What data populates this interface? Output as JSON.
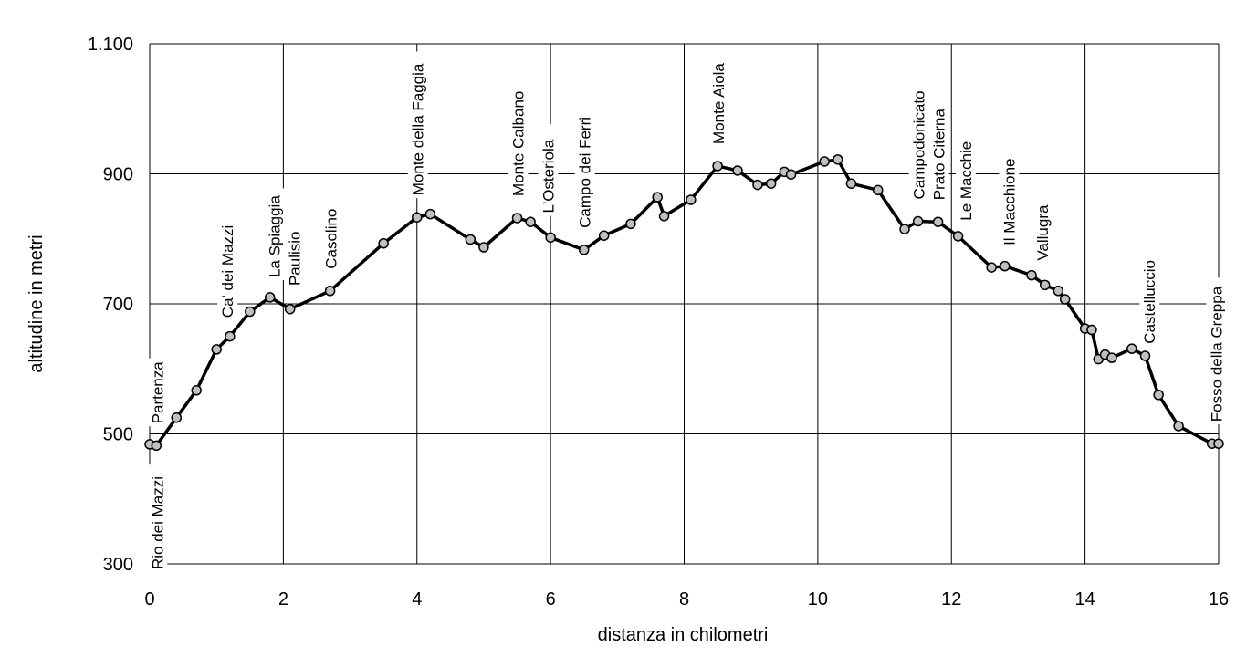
{
  "chart_data": {
    "type": "line",
    "title": "",
    "xlabel": "distanza in chilometri",
    "ylabel": "altitudine  in metri",
    "xlim": [
      0,
      16
    ],
    "ylim": [
      300,
      1100
    ],
    "x_ticks": [
      0,
      2,
      4,
      6,
      8,
      10,
      12,
      14,
      16
    ],
    "x_tick_labels": [
      "0",
      "2",
      "4",
      "6",
      "8",
      "10",
      "12",
      "14",
      "16"
    ],
    "y_ticks": [
      300,
      500,
      700,
      900,
      1100
    ],
    "y_tick_labels": [
      "300",
      "500",
      "700",
      "900",
      "1.100"
    ],
    "grid": true,
    "legend": "none",
    "series": [
      {
        "x": [
          0,
          0.1,
          0.4,
          0.7,
          1.0,
          1.2,
          1.5,
          1.8,
          2.1,
          2.7,
          3.5,
          4.0,
          4.2,
          4.8,
          5.0,
          5.5,
          5.7,
          6.0,
          6.5,
          6.8,
          7.2,
          7.6,
          7.7,
          8.1,
          8.5,
          8.8,
          9.1,
          9.3,
          9.5,
          9.6,
          10.1,
          10.3,
          10.5,
          10.9,
          11.3,
          11.5,
          11.8,
          12.1,
          12.6,
          12.8,
          13.2,
          13.4,
          13.6,
          13.7,
          14.0,
          14.1,
          14.2,
          14.3,
          14.4,
          14.7,
          14.9,
          15.1,
          15.4,
          15.9,
          16.0
        ],
        "y": [
          484,
          482,
          525,
          567,
          630,
          650,
          688,
          710,
          692,
          720,
          793,
          833,
          838,
          799,
          787,
          832,
          826,
          802,
          783,
          805,
          823,
          864,
          835,
          860,
          912,
          905,
          883,
          885,
          903,
          899,
          919,
          922,
          885,
          875,
          815,
          827,
          826,
          804,
          756,
          758,
          744,
          729,
          720,
          707,
          662,
          660,
          615,
          622,
          617,
          631,
          620,
          560,
          512,
          485,
          485
        ]
      }
    ],
    "annotations": [
      {
        "text": "Rio dei Mazzi",
        "x": 0.1
      },
      {
        "text": "Partenza",
        "x": 0.1
      },
      {
        "text": "Ca' dei Mazzi",
        "x": 1.15
      },
      {
        "text": "La Spiaggia",
        "x": 1.85
      },
      {
        "text": "Paulisio",
        "x": 2.15
      },
      {
        "text": "Casolino",
        "x": 2.7
      },
      {
        "text": "Monte della Faggia",
        "x": 4.0
      },
      {
        "text": "Monte Calbano",
        "x": 5.5
      },
      {
        "text": "L'Osteriola",
        "x": 5.95
      },
      {
        "text": "Campo dei Ferri",
        "x": 6.5
      },
      {
        "text": "Monte Aiola",
        "x": 8.5
      },
      {
        "text": "Campodonicato",
        "x": 11.5
      },
      {
        "text": "Prato Citerna",
        "x": 11.8
      },
      {
        "text": "Le Macchie",
        "x": 12.2
      },
      {
        "text": "Il Macchione",
        "x": 12.85
      },
      {
        "text": "Vallugra",
        "x": 13.35
      },
      {
        "text": "Castelluccio",
        "x": 14.95
      },
      {
        "text": "Fosso della Greppa",
        "x": 15.95
      }
    ]
  }
}
